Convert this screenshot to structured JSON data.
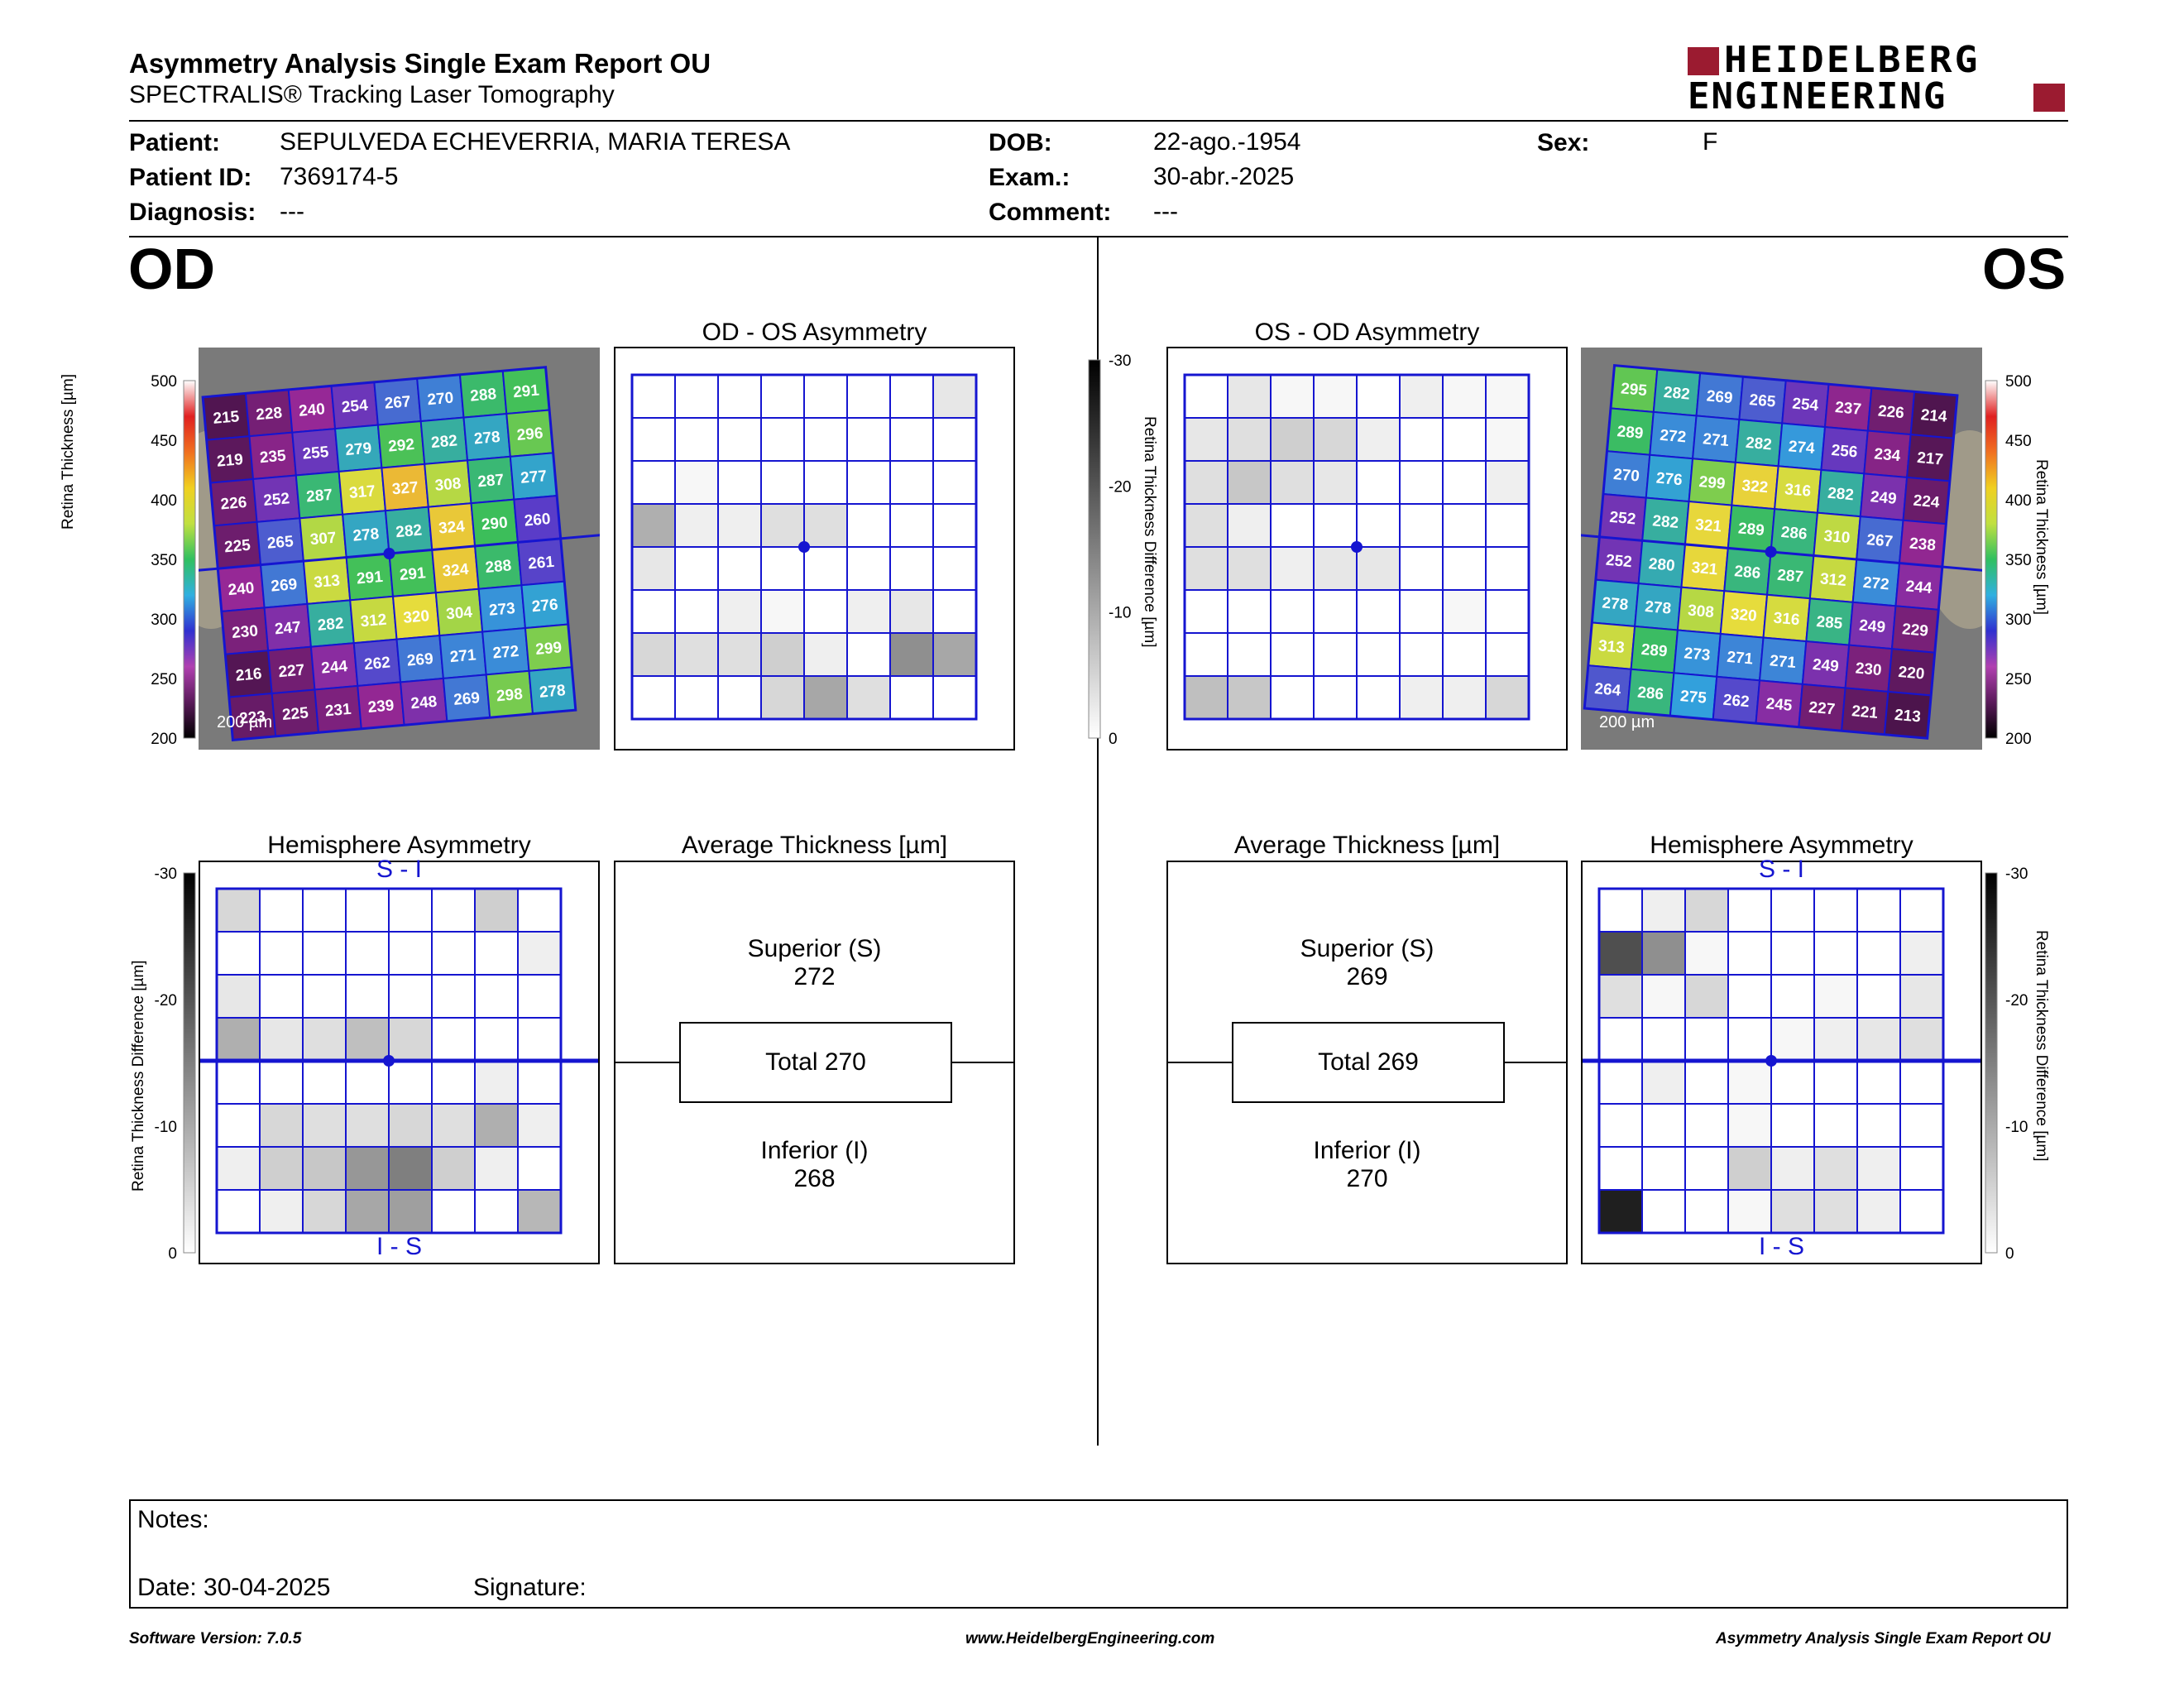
{
  "header": {
    "title": "Asymmetry Analysis Single Exam Report OU",
    "subtitle": "SPECTRALIS® Tracking Laser Tomography",
    "logo_top": "HEIDELBERG",
    "logo_bottom": "ENGINEERING",
    "brand_color": "#9b1b30"
  },
  "patient": {
    "patient_label": "Patient:",
    "patient_value": "SEPULVEDA ECHEVERRIA, MARIA TERESA",
    "id_label": "Patient ID:",
    "id_value": "7369174-5",
    "diagnosis_label": "Diagnosis:",
    "diagnosis_value": "---",
    "dob_label": "DOB:",
    "dob_value": "22-ago.-1954",
    "exam_label": "Exam.:",
    "exam_value": "30-abr.-2025",
    "comment_label": "Comment:",
    "comment_value": "---",
    "sex_label": "Sex:",
    "sex_value": "F"
  },
  "od": {
    "eye_label": "OD",
    "asym_title": "OD - OS Asymmetry",
    "hemi_title": "Hemisphere Asymmetry",
    "hemi_top": "S - I",
    "hemi_bottom": "I - S",
    "avg_title": "Average Thickness [µm]",
    "sup_label": "Superior (S)",
    "sup_value": "272",
    "total_label": "Total 270",
    "inf_label": "Inferior (I)",
    "inf_value": "268",
    "scale_bar": "200 µm",
    "thickness_grid": [
      [
        215,
        228,
        240,
        254,
        267,
        270,
        288,
        291
      ],
      [
        219,
        235,
        255,
        279,
        292,
        282,
        278,
        296
      ],
      [
        226,
        252,
        287,
        317,
        327,
        308,
        287,
        277
      ],
      [
        225,
        265,
        307,
        278,
        282,
        324,
        290,
        260
      ],
      [
        240,
        269,
        313,
        291,
        291,
        324,
        288,
        261
      ],
      [
        230,
        247,
        282,
        312,
        320,
        304,
        273,
        276
      ],
      [
        216,
        227,
        244,
        262,
        269,
        271,
        272,
        299
      ],
      [
        223,
        225,
        231,
        239,
        248,
        269,
        298,
        278
      ]
    ],
    "asym_grid": [
      [
        0,
        0,
        0,
        0,
        0,
        0,
        0,
        3
      ],
      [
        0,
        0,
        0,
        0,
        0,
        0,
        0,
        0
      ],
      [
        0,
        1,
        0,
        0,
        0,
        0,
        0,
        0
      ],
      [
        10,
        2,
        2,
        4,
        4,
        0,
        0,
        0
      ],
      [
        3,
        0,
        0,
        0,
        0,
        0,
        0,
        0
      ],
      [
        0,
        0,
        2,
        1,
        0,
        2,
        3,
        0
      ],
      [
        5,
        4,
        4,
        6,
        2,
        0,
        14,
        11
      ],
      [
        0,
        0,
        0,
        5,
        11,
        4,
        0,
        0
      ]
    ],
    "hemi_grid": [
      [
        5,
        0,
        0,
        0,
        0,
        0,
        6,
        0
      ],
      [
        0,
        0,
        0,
        0,
        0,
        0,
        0,
        2
      ],
      [
        3,
        0,
        0,
        0,
        0,
        0,
        0,
        0
      ],
      [
        10,
        3,
        4,
        8,
        5,
        0,
        0,
        0
      ],
      [
        0,
        0,
        0,
        0,
        0,
        0,
        2,
        0
      ],
      [
        0,
        5,
        4,
        4,
        5,
        4,
        10,
        2
      ],
      [
        2,
        6,
        7,
        13,
        16,
        6,
        2,
        0
      ],
      [
        0,
        2,
        5,
        11,
        12,
        0,
        0,
        9
      ]
    ]
  },
  "os": {
    "eye_label": "OS",
    "asym_title": "OS - OD Asymmetry",
    "hemi_title": "Hemisphere Asymmetry",
    "hemi_top": "S - I",
    "hemi_bottom": "I - S",
    "avg_title": "Average Thickness [µm]",
    "sup_label": "Superior (S)",
    "sup_value": "269",
    "total_label": "Total 269",
    "inf_label": "Inferior (I)",
    "inf_value": "270",
    "scale_bar": "200 µm",
    "thickness_grid": [
      [
        295,
        282,
        269,
        265,
        254,
        237,
        226,
        214
      ],
      [
        289,
        272,
        271,
        282,
        274,
        256,
        234,
        217
      ],
      [
        270,
        276,
        299,
        322,
        316,
        282,
        249,
        224
      ],
      [
        252,
        282,
        321,
        289,
        286,
        310,
        267,
        238
      ],
      [
        252,
        280,
        321,
        286,
        287,
        312,
        272,
        244
      ],
      [
        278,
        278,
        308,
        320,
        316,
        285,
        249,
        229
      ],
      [
        313,
        289,
        273,
        271,
        271,
        249,
        230,
        220
      ],
      [
        264,
        286,
        275,
        262,
        245,
        227,
        221,
        213
      ]
    ],
    "asym_grid": [
      [
        0,
        3,
        1,
        1,
        0,
        2,
        1,
        1
      ],
      [
        3,
        4,
        6,
        5,
        2,
        0,
        0,
        1
      ],
      [
        4,
        7,
        4,
        3,
        0,
        0,
        0,
        2
      ],
      [
        4,
        2,
        0,
        0,
        0,
        0,
        0,
        0
      ],
      [
        4,
        4,
        2,
        3,
        3,
        0,
        0,
        0
      ],
      [
        0,
        0,
        0,
        0,
        0,
        0,
        1,
        0
      ],
      [
        0,
        0,
        0,
        0,
        0,
        0,
        0,
        0
      ],
      [
        8,
        7,
        0,
        0,
        0,
        2,
        2,
        5
      ]
    ],
    "hemi_grid": [
      [
        0,
        2,
        5,
        0,
        0,
        0,
        0,
        0
      ],
      [
        22,
        14,
        1,
        0,
        0,
        0,
        0,
        2
      ],
      [
        4,
        1,
        5,
        0,
        0,
        1,
        0,
        3
      ],
      [
        0,
        0,
        0,
        0,
        1,
        2,
        3,
        4
      ],
      [
        0,
        2,
        0,
        1,
        0,
        0,
        0,
        0
      ],
      [
        0,
        0,
        0,
        1,
        0,
        0,
        0,
        0
      ],
      [
        0,
        0,
        0,
        6,
        2,
        4,
        2,
        0
      ],
      [
        28,
        0,
        0,
        1,
        4,
        4,
        2,
        0
      ]
    ]
  },
  "scales": {
    "thickness_axis_label": "Retina Thickness [µm]",
    "thickness_ticks": [
      "500",
      "450",
      "400",
      "350",
      "300",
      "250",
      "200"
    ],
    "diff_axis_label": "Retina Thickness Difference [µm]",
    "diff_ticks": [
      "-30",
      "-20",
      "-10",
      "0"
    ]
  },
  "notes": {
    "notes_label": "Notes:",
    "date_label": "Date: 30-04-2025",
    "signature_label": "Signature:"
  },
  "footer": {
    "software": "Software Version: 7.0.5",
    "website": "www.HeidelbergEngineering.com",
    "report": "Asymmetry Analysis Single Exam Report OU"
  }
}
